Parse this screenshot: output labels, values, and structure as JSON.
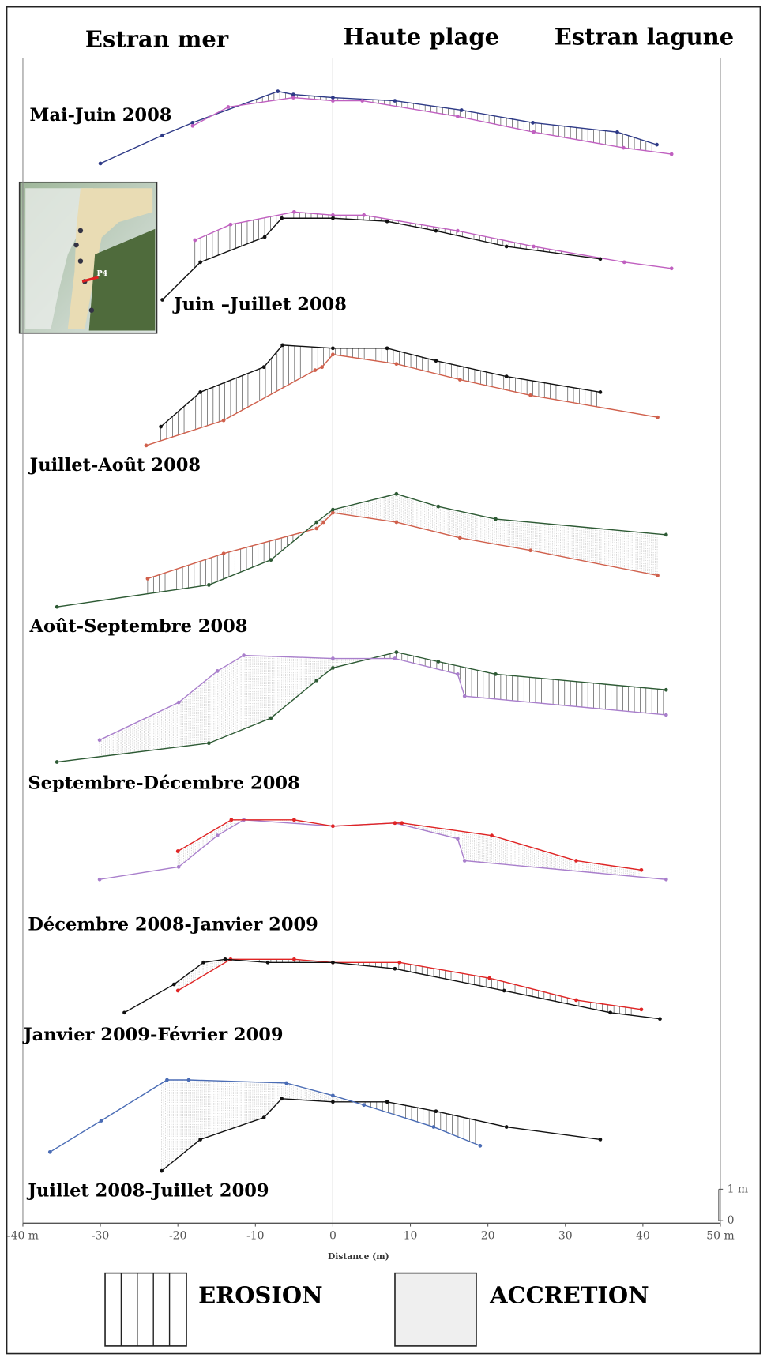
{
  "chart_data": {
    "type": "profile",
    "headers": [
      "Estran mer",
      "Haute plage",
      "Estran lagune"
    ],
    "inset_label": "P4",
    "xlabel": "Distance (m)",
    "xlim": [
      -40,
      50
    ],
    "xticks": [
      {
        "value": -40,
        "label": "-40 m"
      },
      -30,
      -20,
      -10,
      0,
      10,
      20,
      30,
      40,
      {
        "value": 50,
        "label": "50 m"
      }
    ],
    "ylim": [
      0,
      6
    ],
    "scale_ticks": [
      {
        "value": 1,
        "label": "1 m"
      },
      0
    ],
    "legend": [
      "EROSION",
      "ACCRETION"
    ],
    "panels": [
      {
        "title": "Mai-Juin 2008",
        "series": [
          {
            "color": "#2e3a87",
            "x": [
              -30,
              -22.0,
              -18.1,
              -7.1,
              -5.1,
              0,
              8.0,
              16.6,
              25.8,
              36.7,
              41.8
            ],
            "values": [
              0.6,
              1.5,
              1.9,
              2.9,
              2.8,
              2.7,
              2.6,
              2.3,
              1.9,
              1.6,
              1.2
            ]
          },
          {
            "color": "#c060c0",
            "x": [
              -18.1,
              -13.5,
              -5.1,
              0,
              3.8,
              16.1,
              25.9,
              37.5,
              43.7
            ],
            "values": [
              1.8,
              2.4,
              2.7,
              2.6,
              2.6,
              2.1,
              1.6,
              1.1,
              0.9
            ]
          }
        ]
      },
      {
        "title": "Juin –Juillet 2008",
        "series": [
          {
            "color": "#c060c0",
            "x": [
              -17.8,
              -13.2,
              -5.0,
              0,
              4.0,
              16.1,
              25.9,
              37.6,
              43.7
            ],
            "values": [
              3.1,
              3.6,
              4.0,
              3.9,
              3.9,
              3.4,
              2.9,
              2.4,
              2.2
            ]
          },
          {
            "color": "#111111",
            "x": [
              -22.0,
              -17.1,
              -8.8,
              -6.6,
              0,
              7.0,
              13.3,
              22.4,
              34.5
            ],
            "values": [
              1.2,
              2.4,
              3.2,
              3.8,
              3.8,
              3.7,
              3.4,
              2.9,
              2.5
            ]
          }
        ]
      },
      {
        "title": "Juillet-Août 2008",
        "series": [
          {
            "color": "#111111",
            "x": [
              -22.2,
              -17.1,
              -8.9,
              -6.5,
              0,
              7.0,
              13.3,
              22.4,
              34.5
            ],
            "values": [
              2.1,
              3.2,
              4.0,
              4.7,
              4.6,
              4.6,
              4.2,
              3.7,
              3.2
            ]
          },
          {
            "color": "#d0604c",
            "x": [
              -24.1,
              -14.1,
              -2.3,
              -1.4,
              0,
              8.2,
              16.4,
              25.5,
              41.9
            ],
            "values": [
              1.5,
              2.3,
              3.9,
              4.0,
              4.4,
              4.1,
              3.6,
              3.1,
              2.4
            ]
          }
        ]
      },
      {
        "title": "Août-Septembre 2008",
        "series": [
          {
            "color": "#d0604c",
            "x": [
              -23.9,
              -14.1,
              -2.1,
              -1.2,
              0,
              8.2,
              16.4,
              25.5,
              41.9
            ],
            "values": [
              2.2,
              3.0,
              3.8,
              4.0,
              4.3,
              4.0,
              3.5,
              3.1,
              2.3
            ]
          },
          {
            "color": "#2d5a34",
            "x": [
              -35.6,
              -16.0,
              -8.0,
              -2.1,
              0,
              8.2,
              13.6,
              21.0,
              43.0
            ],
            "values": [
              1.3,
              2.0,
              2.8,
              4.0,
              4.4,
              4.9,
              4.5,
              4.1,
              3.6
            ]
          }
        ]
      },
      {
        "title": "Septembre-Décembre 2008",
        "series": [
          {
            "color": "#2d5a34",
            "x": [
              -35.6,
              -16.0,
              -8.0,
              -2.1,
              0,
              8.2,
              13.6,
              21.0,
              43.0
            ],
            "values": [
              1.3,
              1.9,
              2.7,
              3.9,
              4.3,
              4.8,
              4.5,
              4.1,
              3.6
            ]
          },
          {
            "color": "#a97fcc",
            "x": [
              -30.1,
              -19.9,
              -14.9,
              -11.5,
              0,
              8.0,
              16.1,
              17.0,
              43.0
            ],
            "values": [
              2.0,
              3.2,
              4.2,
              4.7,
              4.6,
              4.6,
              4.1,
              3.4,
              2.8
            ]
          }
        ]
      },
      {
        "title": "Décembre 2008-Janvier 2009",
        "series": [
          {
            "color": "#a97fcc",
            "x": [
              -30.1,
              -19.9,
              -14.9,
              -11.5,
              0,
              8.0,
              16.1,
              17.0,
              43.0
            ],
            "values": [
              2.5,
              2.9,
              3.9,
              4.4,
              4.2,
              4.3,
              3.8,
              3.1,
              2.5
            ]
          },
          {
            "color": "#e02424",
            "x": [
              -20.0,
              -13.1,
              -5.0,
              0,
              8.0,
              8.9,
              20.5,
              31.4,
              39.8
            ],
            "values": [
              3.4,
              4.4,
              4.4,
              4.2,
              4.3,
              4.3,
              3.9,
              3.1,
              2.8
            ]
          }
        ]
      },
      {
        "title": "Janvier 2009-Février 2009",
        "series": [
          {
            "color": "#e02424",
            "x": [
              -20.0,
              -13.2,
              -5.0,
              0,
              8.6,
              20.2,
              31.4,
              39.8
            ],
            "values": [
              3.9,
              4.9,
              4.9,
              4.8,
              4.8,
              4.3,
              3.6,
              3.3
            ]
          },
          {
            "color": "#111111",
            "x": [
              -26.9,
              -20.5,
              -16.7,
              -13.9,
              -8.4,
              0,
              8.0,
              22.1,
              35.8,
              42.2
            ],
            "values": [
              3.2,
              4.1,
              4.8,
              4.9,
              4.8,
              4.8,
              4.6,
              3.9,
              3.2,
              3.0
            ]
          }
        ]
      },
      {
        "title": "Juillet 2008-Juillet 2009",
        "series": [
          {
            "color": "#111111",
            "x": [
              -22.1,
              -17.1,
              -8.9,
              -6.6,
              0,
              7.0,
              13.3,
              22.4,
              34.5
            ],
            "values": [
              3.1,
              4.1,
              4.8,
              5.4,
              5.3,
              5.3,
              5.0,
              4.5,
              4.1
            ]
          },
          {
            "color": "#4a6cb5",
            "x": [
              -36.5,
              -29.9,
              -21.4,
              -18.6,
              -6.0,
              0,
              4.0,
              13.0,
              19.0
            ],
            "values": [
              3.7,
              4.7,
              6.0,
              6.0,
              5.9,
              5.5,
              5.2,
              4.5,
              3.9
            ]
          }
        ]
      }
    ]
  }
}
